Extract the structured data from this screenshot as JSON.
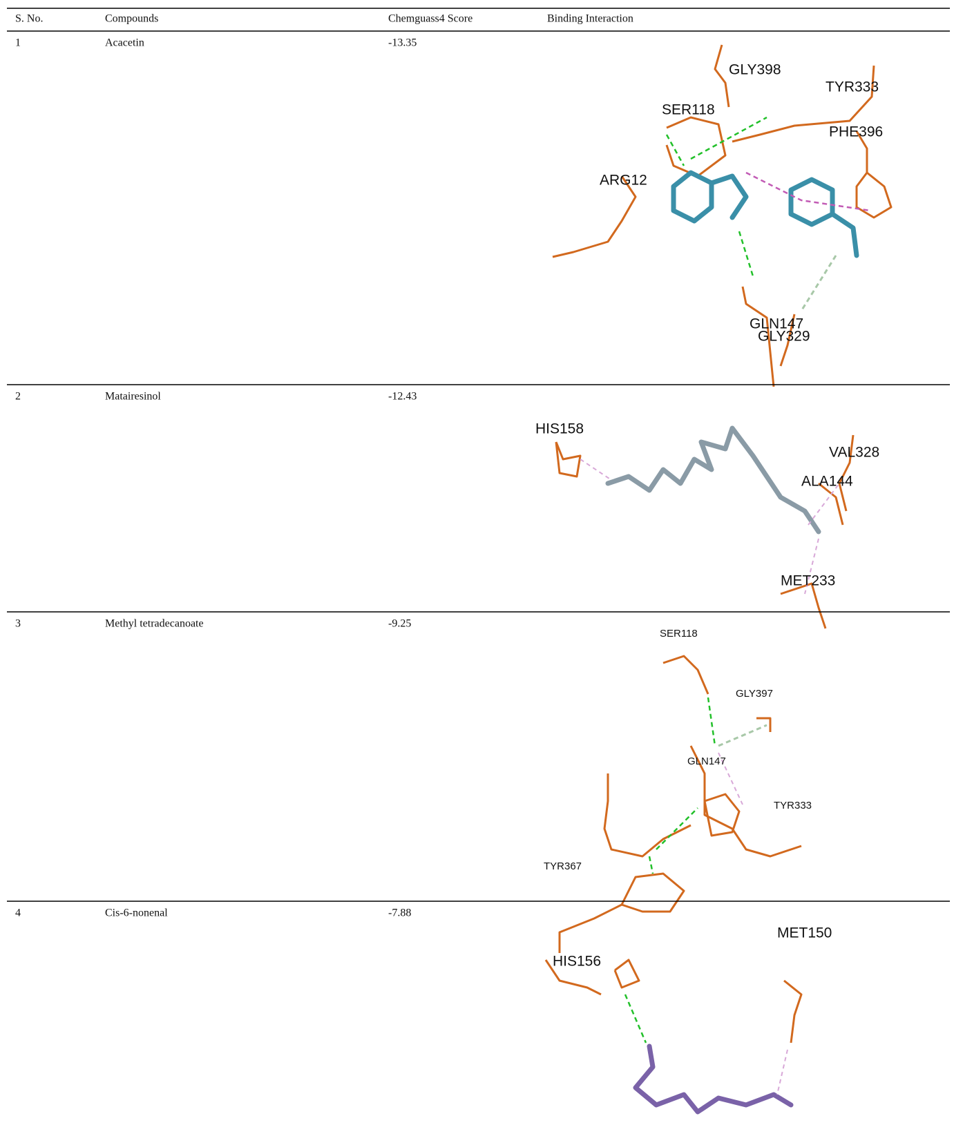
{
  "table": {
    "header": [
      "S. No.",
      "Compounds",
      "Chemguass4 Score",
      "Binding Interaction"
    ],
    "rows": [
      {
        "no": 1,
        "compound": "Acacetin",
        "score": -13.35,
        "residues": [
          "GLY398",
          "TYR333",
          "SER118",
          "PHE396",
          "ARG12",
          "GLN147",
          "GLY329"
        ]
      },
      {
        "no": 2,
        "compound": "Matairesinol",
        "score": -12.43,
        "residues": [
          "HIS158",
          "VAL328",
          "ALA144",
          "MET233"
        ]
      },
      {
        "no": 3,
        "compound": "Methyl tetradecanoate",
        "score": -9.25,
        "residues": [
          "SER118",
          "GLY397",
          "GLN147",
          "TYR333",
          "TYR367"
        ]
      },
      {
        "no": 4,
        "compound": "Cis-6-nonenal",
        "score": -7.88,
        "residues": [
          "MET150",
          "HIS156"
        ]
      }
    ]
  }
}
